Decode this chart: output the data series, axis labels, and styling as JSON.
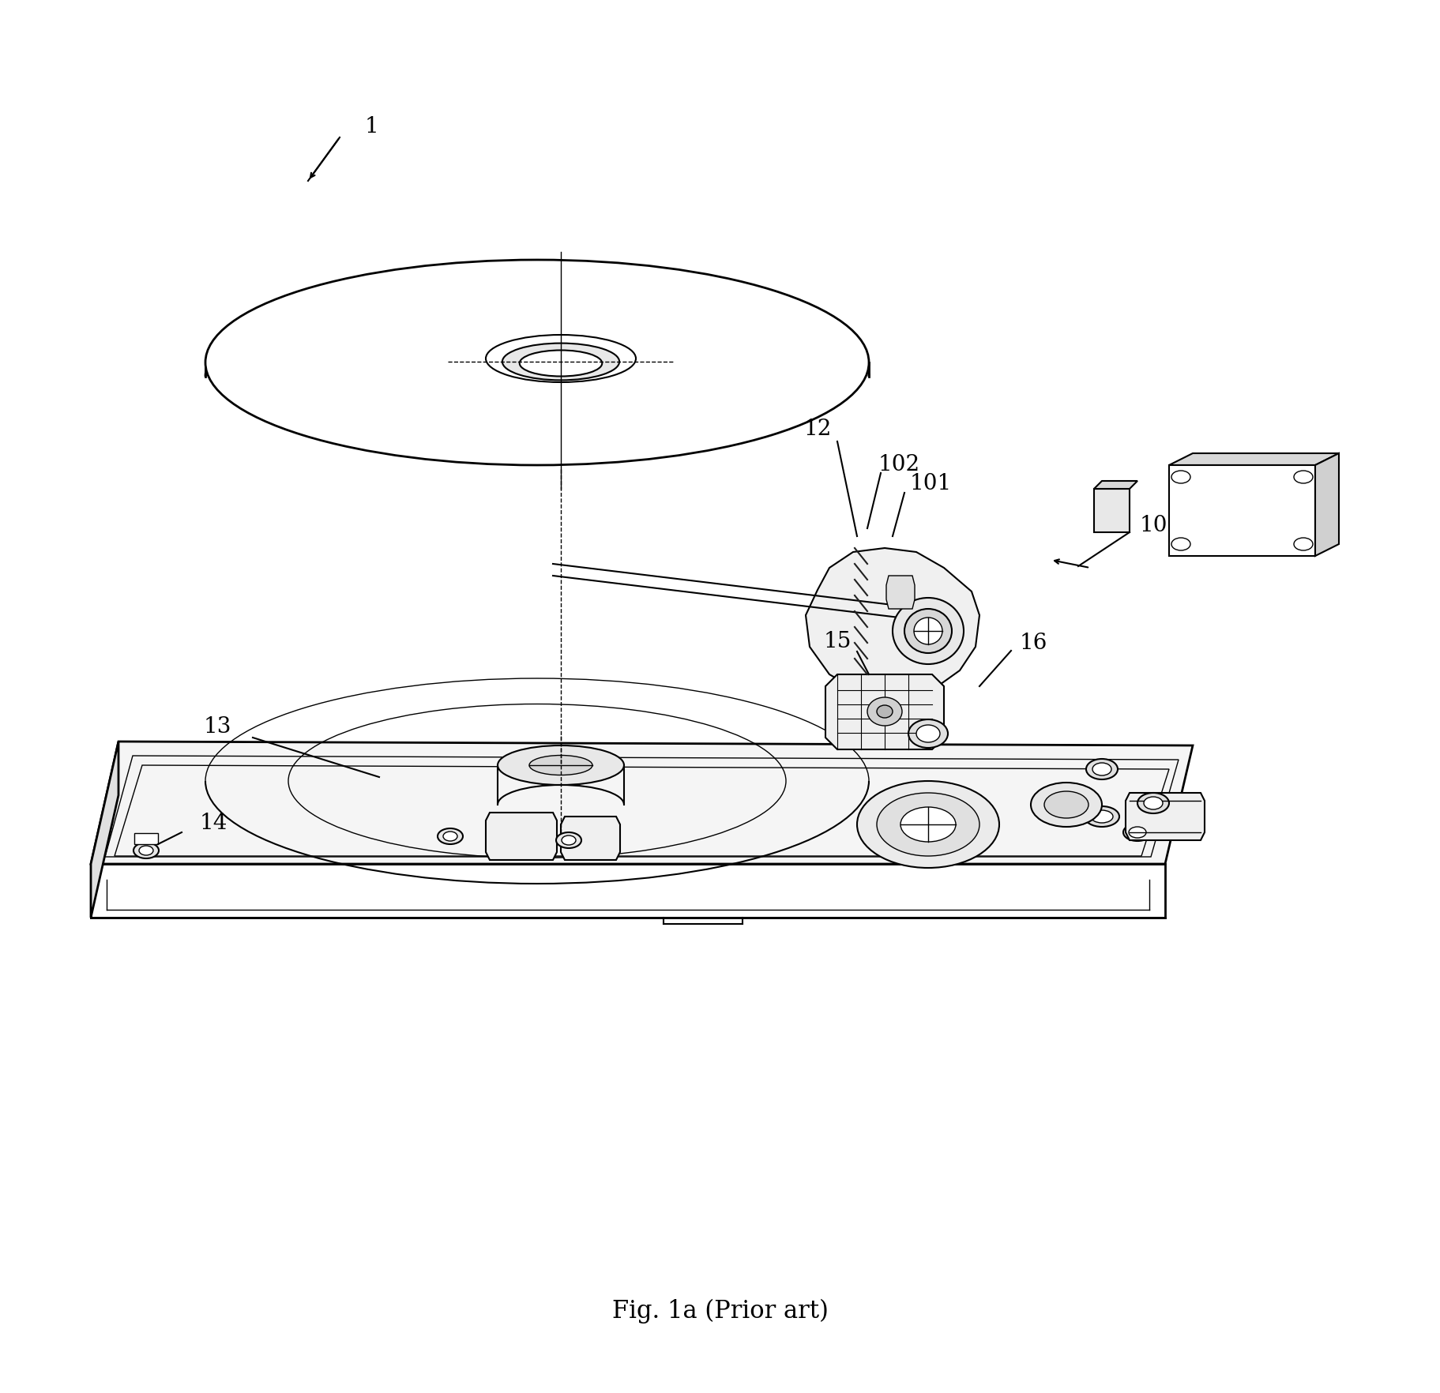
{
  "title": "Fig. 1a (Prior art)",
  "background_color": "#ffffff",
  "line_color": "#000000",
  "fig_width": 18.24,
  "fig_height": 17.65,
  "caption_fontsize": 22,
  "label_fontsize": 20
}
